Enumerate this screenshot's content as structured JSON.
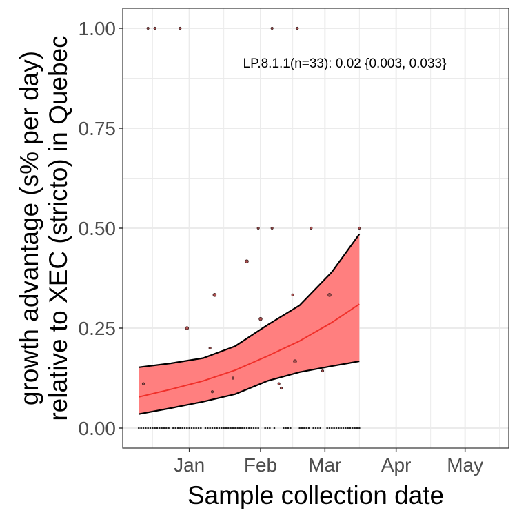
{
  "chart_data": {
    "type": "line",
    "xlabel": "Sample collection date",
    "ylabel_lines": [
      "growth advantage (s% per day)",
      "relative to XEC (stricto) in Quebec"
    ],
    "annotation": "LP.8.1.1(n=33): 0.02 {0.003, 0.033}",
    "ylim": [
      -0.05,
      1.05
    ],
    "xlim": [
      "2024-12-03",
      "2025-05-20"
    ],
    "x_ticks": [
      {
        "date": "2025-01-01",
        "label": "Jan"
      },
      {
        "date": "2025-02-01",
        "label": "Feb"
      },
      {
        "date": "2025-03-01",
        "label": "Mar"
      },
      {
        "date": "2025-04-01",
        "label": "Apr"
      },
      {
        "date": "2025-05-01",
        "label": "May"
      }
    ],
    "y_ticks": [
      0,
      0.25,
      0.5,
      0.75,
      1.0
    ],
    "y_tick_labels": [
      "0.00",
      "0.25",
      "0.50",
      "0.75",
      "1.00"
    ],
    "grid": true,
    "colors": {
      "ribbon": "#ff7f7f",
      "fit_line": "#f0302a",
      "bound_line": "#000000",
      "points": "#4a2a2a",
      "grid": "#ebebeb",
      "panel_border": "#333333"
    },
    "fit": {
      "x": [
        "2024-12-10",
        "2024-12-24",
        "2025-01-07",
        "2025-01-21",
        "2025-02-04",
        "2025-02-18",
        "2025-03-04",
        "2025-03-16"
      ],
      "y": [
        0.078,
        0.097,
        0.118,
        0.145,
        0.18,
        0.218,
        0.264,
        0.31
      ],
      "lower": [
        0.035,
        0.05,
        0.066,
        0.085,
        0.118,
        0.14,
        0.155,
        0.167
      ],
      "upper": [
        0.152,
        0.162,
        0.175,
        0.205,
        0.258,
        0.307,
        0.39,
        0.485
      ]
    },
    "points": [
      {
        "x": "2024-12-14",
        "y": 1.0,
        "size": 1
      },
      {
        "x": "2024-12-17",
        "y": 1.0,
        "size": 1
      },
      {
        "x": "2024-12-28",
        "y": 1.0,
        "size": 1
      },
      {
        "x": "2025-02-06",
        "y": 1.0,
        "size": 1
      },
      {
        "x": "2025-02-17",
        "y": 1.0,
        "size": 1
      },
      {
        "x": "2025-01-31",
        "y": 0.5,
        "size": 1
      },
      {
        "x": "2025-02-06",
        "y": 0.5,
        "size": 1
      },
      {
        "x": "2025-02-23",
        "y": 0.5,
        "size": 1
      },
      {
        "x": "2025-03-16",
        "y": 0.5,
        "size": 1
      },
      {
        "x": "2025-01-26",
        "y": 0.417,
        "size": 2
      },
      {
        "x": "2025-01-12",
        "y": 0.333,
        "size": 2
      },
      {
        "x": "2025-02-15",
        "y": 0.333,
        "size": 1
      },
      {
        "x": "2025-03-03",
        "y": 0.333,
        "size": 2
      },
      {
        "x": "2025-02-01",
        "y": 0.273,
        "size": 2
      },
      {
        "x": "2024-12-31",
        "y": 0.25,
        "size": 2
      },
      {
        "x": "2025-01-10",
        "y": 0.2,
        "size": 1
      },
      {
        "x": "2025-02-16",
        "y": 0.167,
        "size": 2
      },
      {
        "x": "2025-02-28",
        "y": 0.143,
        "size": 1
      },
      {
        "x": "2025-01-20",
        "y": 0.125,
        "size": 1
      },
      {
        "x": "2024-12-12",
        "y": 0.111,
        "size": 1
      },
      {
        "x": "2025-02-09",
        "y": 0.111,
        "size": 1
      },
      {
        "x": "2025-02-10",
        "y": 0.1,
        "size": 1
      },
      {
        "x": "2025-01-11",
        "y": 0.091,
        "size": 1
      }
    ],
    "zero_point_dates": [
      "2024-12-10",
      "2024-12-11",
      "2024-12-12",
      "2024-12-13",
      "2024-12-14",
      "2024-12-15",
      "2024-12-16",
      "2024-12-17",
      "2024-12-18",
      "2024-12-19",
      "2024-12-20",
      "2024-12-21",
      "2024-12-22",
      "2024-12-23",
      "2024-12-25",
      "2024-12-26",
      "2024-12-27",
      "2024-12-28",
      "2024-12-29",
      "2024-12-30",
      "2024-12-31",
      "2025-01-01",
      "2025-01-02",
      "2025-01-03",
      "2025-01-04",
      "2025-01-05",
      "2025-01-06",
      "2025-01-08",
      "2025-01-09",
      "2025-01-10",
      "2025-01-11",
      "2025-01-12",
      "2025-01-13",
      "2025-01-14",
      "2025-01-15",
      "2025-01-16",
      "2025-01-17",
      "2025-01-18",
      "2025-01-19",
      "2025-01-20",
      "2025-01-21",
      "2025-01-22",
      "2025-01-23",
      "2025-01-24",
      "2025-01-25",
      "2025-01-26",
      "2025-01-27",
      "2025-01-28",
      "2025-01-29",
      "2025-01-30",
      "2025-01-31",
      "2025-02-03",
      "2025-02-04",
      "2025-02-05",
      "2025-02-07",
      "2025-02-11",
      "2025-02-12",
      "2025-02-13",
      "2025-02-14",
      "2025-02-18",
      "2025-02-19",
      "2025-02-20",
      "2025-02-21",
      "2025-02-22",
      "2025-02-24",
      "2025-02-25",
      "2025-02-26",
      "2025-02-27",
      "2025-03-02",
      "2025-03-03",
      "2025-03-04",
      "2025-03-05",
      "2025-03-06",
      "2025-03-07",
      "2025-03-08",
      "2025-03-09",
      "2025-03-10",
      "2025-03-11",
      "2025-03-12",
      "2025-03-13",
      "2025-03-14",
      "2025-03-15",
      "2025-03-16"
    ]
  }
}
